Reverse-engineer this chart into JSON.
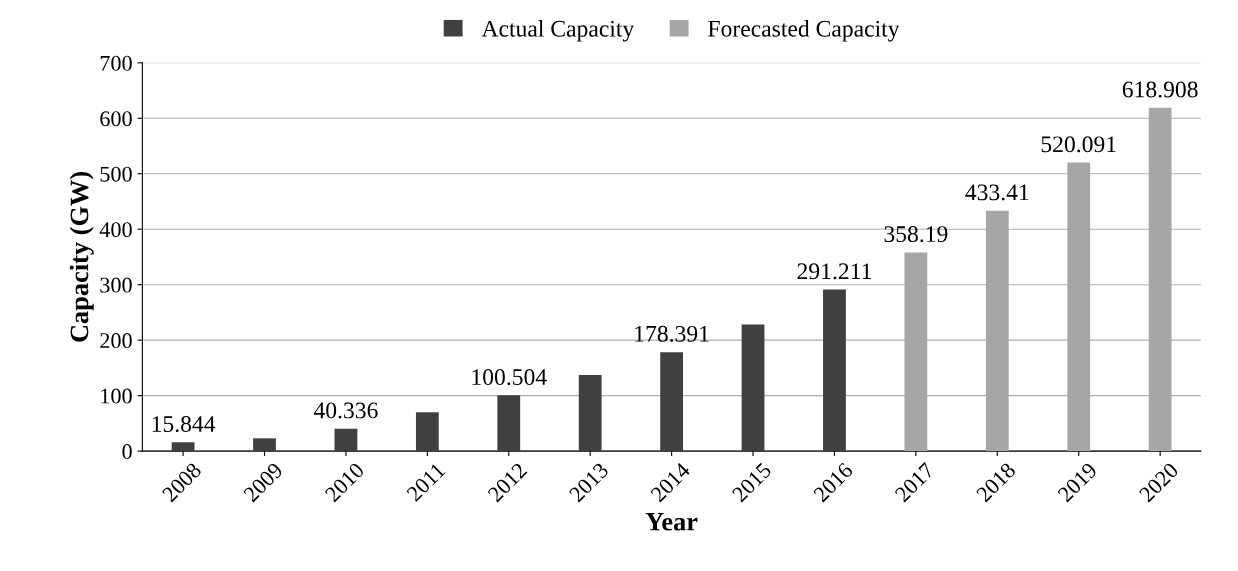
{
  "chart_data": {
    "type": "bar",
    "xlabel": "Year",
    "ylabel": "Capacity (GW)",
    "categories": [
      "2008",
      "2009",
      "2010",
      "2011",
      "2012",
      "2013",
      "2014",
      "2015",
      "2016",
      "2017",
      "2018",
      "2019",
      "2020"
    ],
    "series": [
      {
        "name": "Actual Capacity",
        "color": "#404040",
        "values": [
          15.844,
          23,
          40.336,
          70,
          100.504,
          137,
          178.391,
          228,
          291.211,
          null,
          null,
          null,
          null
        ],
        "value_labels": [
          "15.844",
          null,
          "40.336",
          null,
          "100.504",
          null,
          "178.391",
          null,
          "291.211",
          null,
          null,
          null,
          null
        ]
      },
      {
        "name": "Forecasted Capacity",
        "color": "#a6a6a6",
        "values": [
          null,
          null,
          null,
          null,
          null,
          null,
          null,
          null,
          null,
          358.19,
          433.41,
          520.091,
          618.908
        ],
        "value_labels": [
          null,
          null,
          null,
          null,
          null,
          null,
          null,
          null,
          null,
          "358.19",
          "433.41",
          "520.091",
          "618.908"
        ]
      }
    ],
    "ylim": [
      0,
      700
    ],
    "yticks": [
      0,
      100,
      200,
      300,
      400,
      500,
      600,
      700
    ],
    "grid": "y",
    "legend": "top"
  }
}
